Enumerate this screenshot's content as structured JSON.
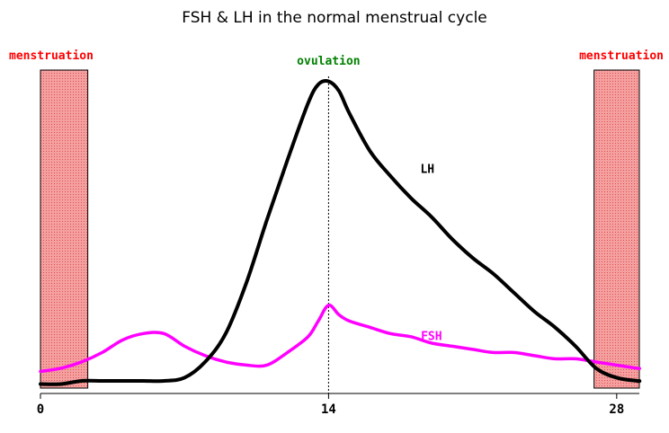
{
  "chart_data": {
    "type": "line",
    "title": "FSH & LH in the normal menstrual cycle",
    "xlabel": "",
    "ylabel": "",
    "xlim": [
      0,
      29.1
    ],
    "ylim": [
      0,
      100
    ],
    "x_ticks": [
      "0",
      "14",
      "28"
    ],
    "x_tick_values": [
      0,
      14,
      28
    ],
    "grid": false,
    "legend": "inline",
    "series": [
      {
        "name": "LH",
        "color": "#000000",
        "x": [
          0,
          1,
          2,
          3,
          4,
          5,
          6,
          7,
          8,
          9,
          10,
          11,
          12,
          13,
          13.5,
          14,
          14.5,
          15,
          16,
          17,
          18,
          19,
          20,
          21,
          22,
          23,
          24,
          25,
          26,
          27,
          28,
          29,
          29.1
        ],
        "values": [
          1,
          1,
          2,
          2,
          2,
          2,
          2,
          3,
          8,
          17,
          33,
          53,
          72,
          90,
          96,
          97,
          94,
          87,
          75,
          67,
          60,
          54,
          47,
          41,
          36,
          30,
          24,
          19,
          13,
          6,
          3,
          2,
          2
        ]
      },
      {
        "name": "FSH",
        "color": "#ff00ff",
        "x": [
          0,
          1,
          2,
          3,
          4,
          5,
          6,
          7,
          8,
          9,
          10,
          11,
          12,
          13,
          13.5,
          14,
          14.5,
          15,
          16,
          17,
          18,
          19,
          20,
          21,
          22,
          23,
          24,
          25,
          26,
          27,
          28,
          29,
          29.1
        ],
        "values": [
          5,
          6,
          8,
          11,
          15,
          17,
          17,
          13,
          10,
          8,
          7,
          7,
          11,
          16,
          21,
          26,
          23,
          21,
          19,
          17,
          16,
          14,
          13,
          12,
          11,
          11,
          10,
          9,
          9,
          8,
          7,
          6,
          6
        ]
      }
    ],
    "bands": [
      {
        "label": "menstruation",
        "x_start": 0,
        "x_end": 2.3,
        "color": "#f08080"
      },
      {
        "label": "menstruation",
        "x_start": 26.9,
        "x_end": 29.1,
        "color": "#f08080"
      }
    ],
    "markers": [
      {
        "label": "ovulation",
        "x": 14,
        "color": "#008000"
      }
    ]
  }
}
